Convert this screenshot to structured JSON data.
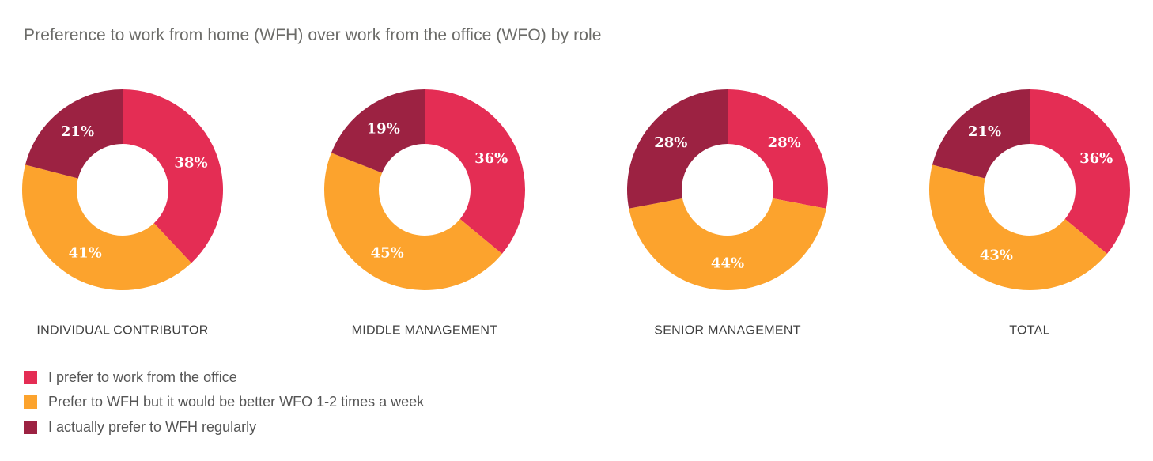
{
  "title": "Preference to work from home (WFH) over work from the office (WFO) by role",
  "colors": {
    "office": "#e42d54",
    "hybrid": "#fca32d",
    "wfh": "#9c2242"
  },
  "legend": [
    {
      "key": "office",
      "label": "I prefer to work from the office"
    },
    {
      "key": "hybrid",
      "label": "Prefer to WFH but it would be better WFO 1-2 times a week"
    },
    {
      "key": "wfh",
      "label": "I actually prefer to WFH regularly"
    }
  ],
  "chart_data": {
    "type": "pie",
    "subtype": "donut",
    "title": "Preference to work from home (WFH) over work from the office (WFO) by role",
    "series_order": [
      "I prefer to work from the office",
      "Prefer to WFH but it would be better WFO 1-2 times a week",
      "I actually prefer to WFH regularly"
    ],
    "legend_position": "bottom-left",
    "charts": [
      {
        "category": "INDIVIDUAL CONTRIBUTOR",
        "values": [
          38,
          41,
          21
        ],
        "labels": [
          "38%",
          "41%",
          "21%"
        ]
      },
      {
        "category": "MIDDLE MANAGEMENT",
        "values": [
          36,
          45,
          19
        ],
        "labels": [
          "36%",
          "45%",
          "19%"
        ]
      },
      {
        "category": "SENIOR MANAGEMENT",
        "values": [
          28,
          44,
          28
        ],
        "labels": [
          "28%",
          "44%",
          "28%"
        ]
      },
      {
        "category": "TOTAL",
        "values": [
          36,
          43,
          21
        ],
        "labels": [
          "36%",
          "43%",
          "21%"
        ]
      }
    ]
  }
}
